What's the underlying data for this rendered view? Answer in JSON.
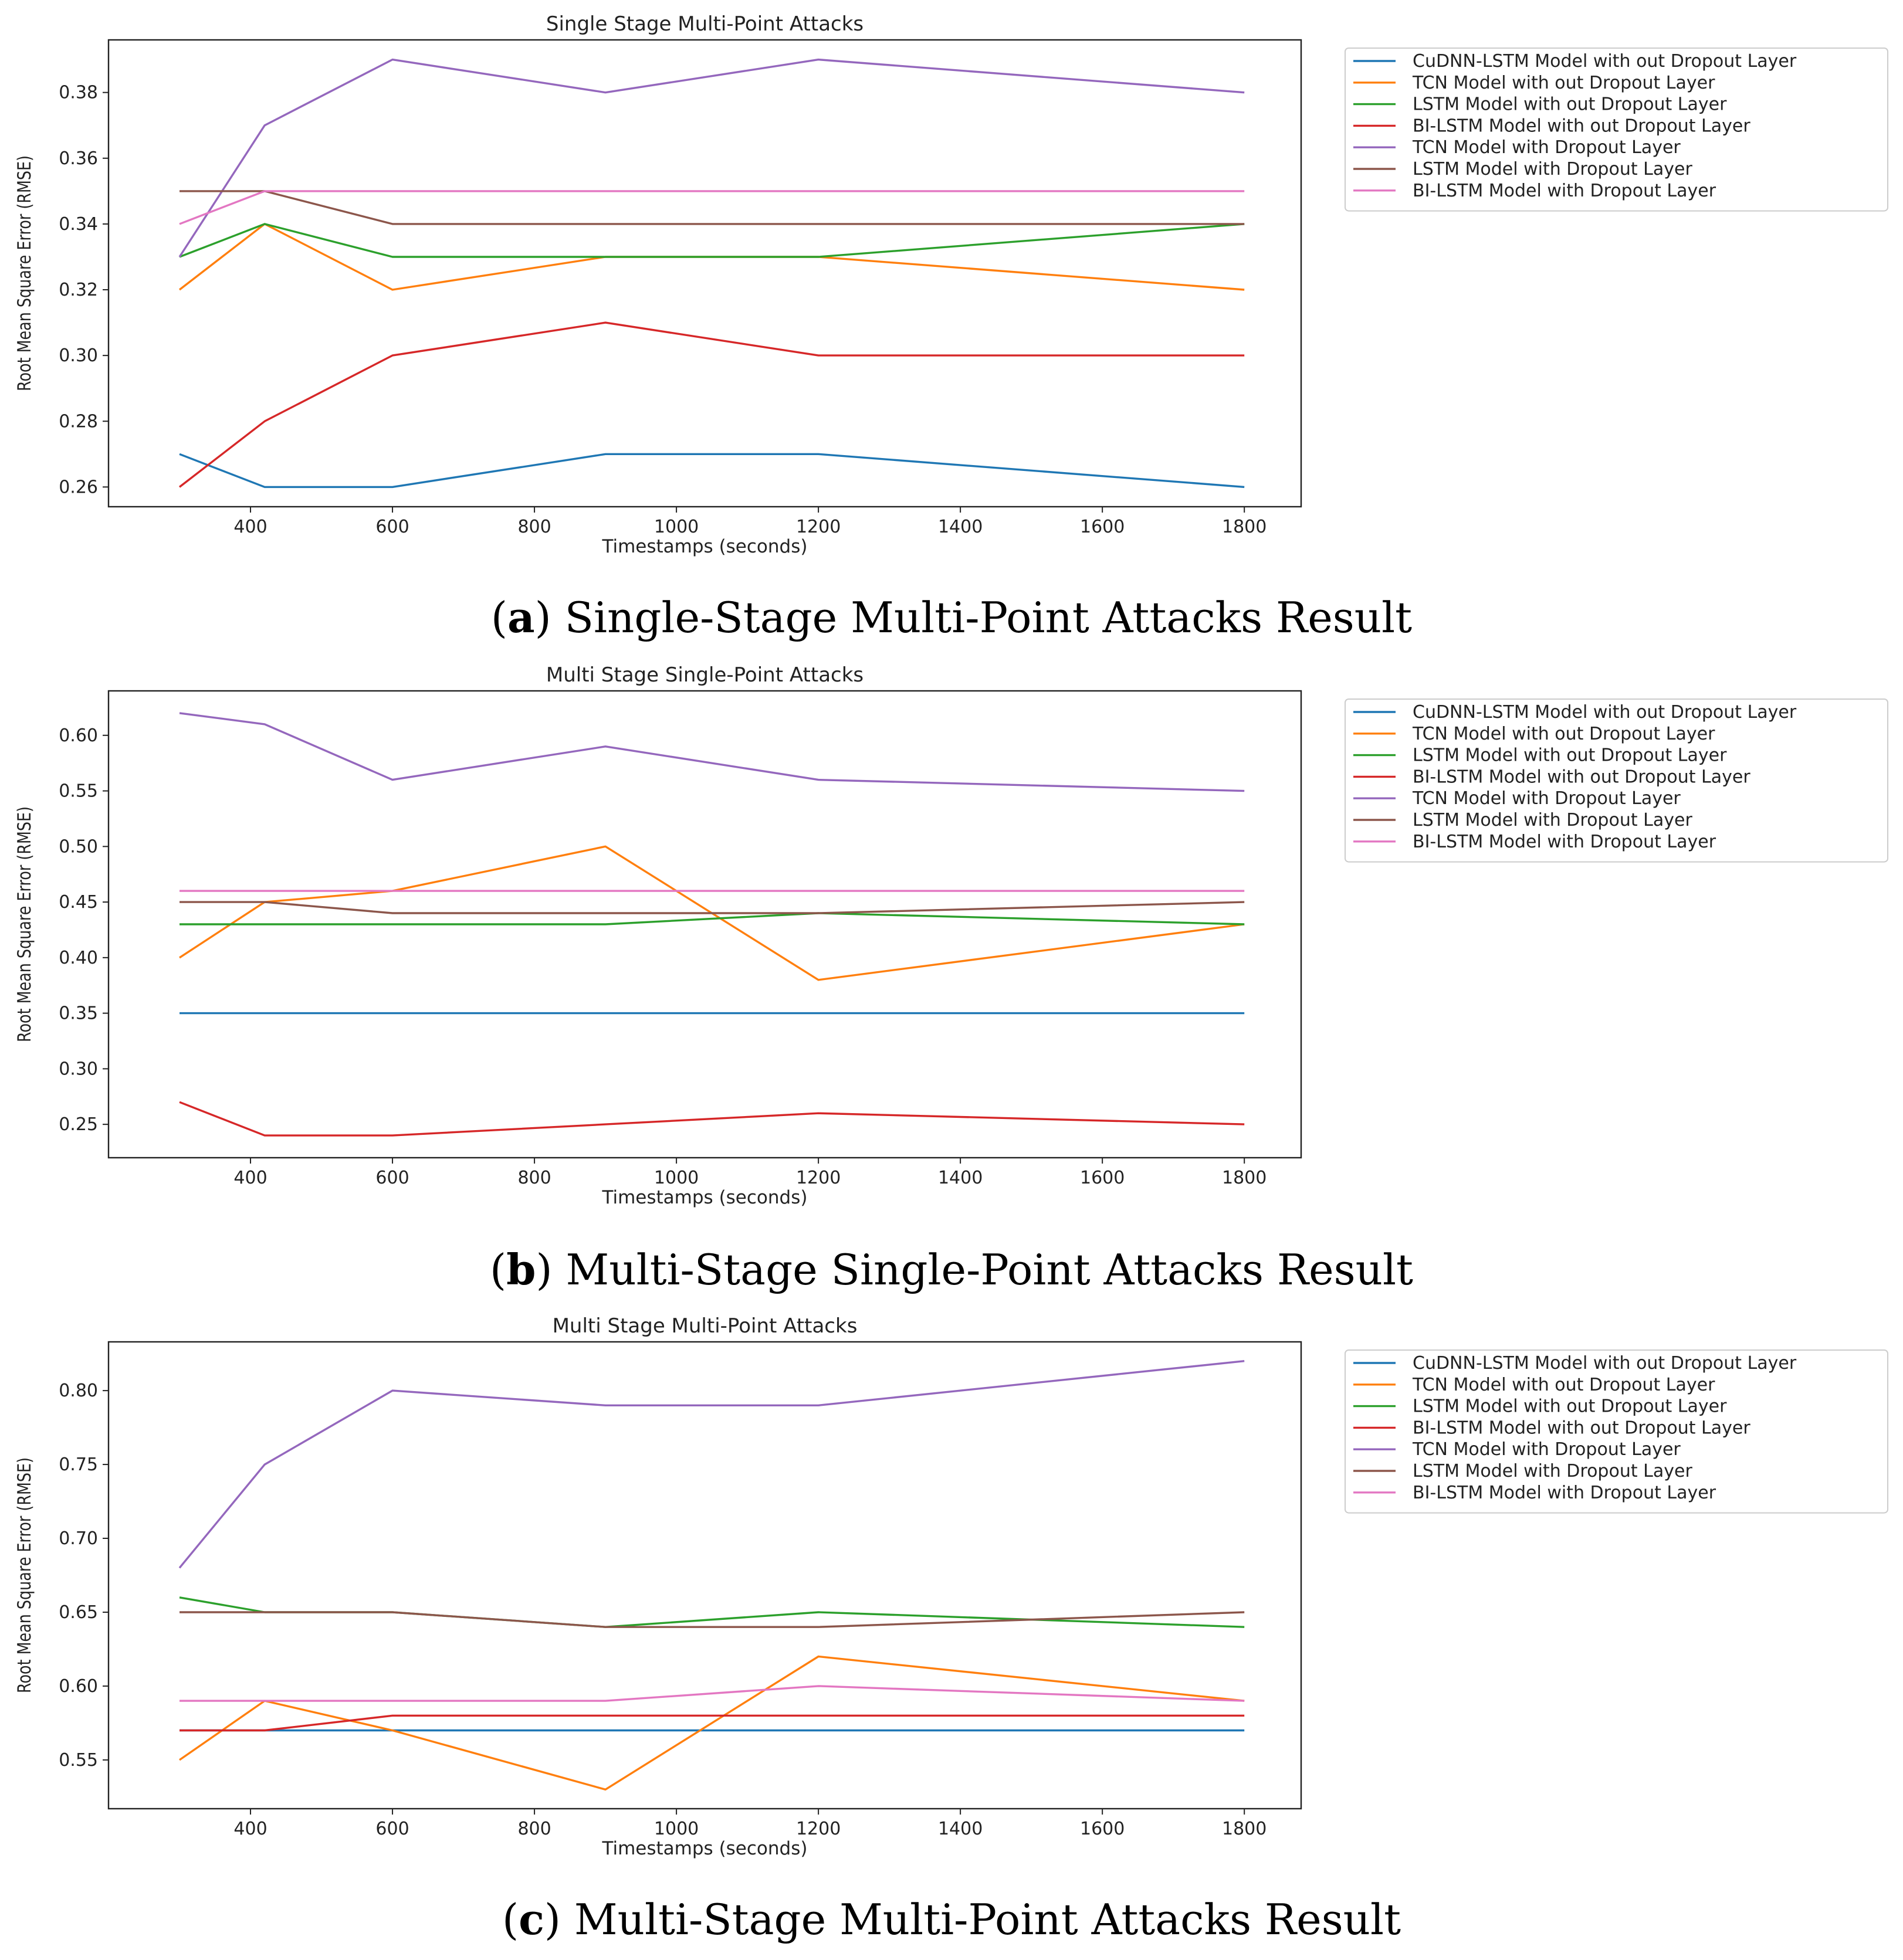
{
  "chart_data": [
    {
      "type": "line",
      "title": "Single Stage Multi-Point Attacks",
      "xlabel": "Timestamps (seconds)",
      "ylabel": "Root Mean Square Error (RMSE)",
      "x": [
        300,
        420,
        600,
        900,
        1200,
        1800
      ],
      "xlim": [
        200,
        1880
      ],
      "ylim": [
        0.254,
        0.396
      ],
      "xticks": [
        "400",
        "600",
        "800",
        "1000",
        "1200",
        "1400",
        "1600",
        "1800"
      ],
      "yticks": [
        "0.26",
        "0.28",
        "0.30",
        "0.32",
        "0.34",
        "0.36",
        "0.38"
      ],
      "legend_position": "outside right",
      "caption_letter": "a",
      "caption_text": "Single-Stage Multi-Point Attacks Result",
      "series": [
        {
          "name": "CuDNN-LSTM Model with out Dropout Layer",
          "color": "#1f77b4",
          "values": [
            0.27,
            0.26,
            0.26,
            0.27,
            0.27,
            0.26
          ]
        },
        {
          "name": "TCN Model with out Dropout Layer",
          "color": "#ff7f0e",
          "values": [
            0.32,
            0.34,
            0.32,
            0.33,
            0.33,
            0.32
          ]
        },
        {
          "name": "LSTM Model with out Dropout Layer",
          "color": "#2ca02c",
          "values": [
            0.33,
            0.34,
            0.33,
            0.33,
            0.33,
            0.34
          ]
        },
        {
          "name": "BI-LSTM Model with out Dropout Layer",
          "color": "#d62728",
          "values": [
            0.26,
            0.28,
            0.3,
            0.31,
            0.3,
            0.3
          ]
        },
        {
          "name": "TCN Model with Dropout Layer",
          "color": "#9467bd",
          "values": [
            0.33,
            0.37,
            0.39,
            0.38,
            0.39,
            0.38
          ]
        },
        {
          "name": "LSTM Model with Dropout Layer",
          "color": "#8c564b",
          "values": [
            0.35,
            0.35,
            0.34,
            0.34,
            0.34,
            0.34
          ]
        },
        {
          "name": "BI-LSTM Model with Dropout Layer",
          "color": "#e377c2",
          "values": [
            0.34,
            0.35,
            0.35,
            0.35,
            0.35,
            0.35
          ]
        }
      ]
    },
    {
      "type": "line",
      "title": "Multi Stage Single-Point Attacks",
      "xlabel": "Timestamps (seconds)",
      "ylabel": "Root Mean Square Error (RMSE)",
      "x": [
        300,
        420,
        600,
        900,
        1200,
        1800
      ],
      "xlim": [
        200,
        1880
      ],
      "ylim": [
        0.22,
        0.64
      ],
      "xticks": [
        "400",
        "600",
        "800",
        "1000",
        "1200",
        "1400",
        "1600",
        "1800"
      ],
      "yticks": [
        "0.25",
        "0.30",
        "0.35",
        "0.40",
        "0.45",
        "0.50",
        "0.55",
        "0.60"
      ],
      "legend_position": "outside right",
      "caption_letter": "b",
      "caption_text": "Multi-Stage Single-Point Attacks Result",
      "series": [
        {
          "name": "CuDNN-LSTM Model with out Dropout Layer",
          "color": "#1f77b4",
          "values": [
            0.35,
            0.35,
            0.35,
            0.35,
            0.35,
            0.35
          ]
        },
        {
          "name": "TCN Model with out Dropout Layer",
          "color": "#ff7f0e",
          "values": [
            0.4,
            0.45,
            0.46,
            0.5,
            0.38,
            0.43
          ]
        },
        {
          "name": "LSTM Model with out Dropout Layer",
          "color": "#2ca02c",
          "values": [
            0.43,
            0.43,
            0.43,
            0.43,
            0.44,
            0.43
          ]
        },
        {
          "name": "BI-LSTM Model with out Dropout Layer",
          "color": "#d62728",
          "values": [
            0.27,
            0.24,
            0.24,
            0.25,
            0.26,
            0.25
          ]
        },
        {
          "name": "TCN Model with Dropout Layer",
          "color": "#9467bd",
          "values": [
            0.62,
            0.61,
            0.56,
            0.59,
            0.56,
            0.55
          ]
        },
        {
          "name": "LSTM Model with Dropout Layer",
          "color": "#8c564b",
          "values": [
            0.45,
            0.45,
            0.44,
            0.44,
            0.44,
            0.45
          ]
        },
        {
          "name": "BI-LSTM Model with Dropout Layer",
          "color": "#e377c2",
          "values": [
            0.46,
            0.46,
            0.46,
            0.46,
            0.46,
            0.46
          ]
        }
      ]
    },
    {
      "type": "line",
      "title": "Multi Stage Multi-Point Attacks",
      "xlabel": "Timestamps (seconds)",
      "ylabel": "Root Mean Square Error (RMSE)",
      "x": [
        300,
        420,
        600,
        900,
        1200,
        1800
      ],
      "xlim": [
        200,
        1880
      ],
      "ylim": [
        0.517,
        0.833
      ],
      "xticks": [
        "400",
        "600",
        "800",
        "1000",
        "1200",
        "1400",
        "1600",
        "1800"
      ],
      "yticks": [
        "0.55",
        "0.60",
        "0.65",
        "0.70",
        "0.75",
        "0.80"
      ],
      "legend_position": "outside right",
      "caption_letter": "c",
      "caption_text": "Multi-Stage Multi-Point Attacks Result",
      "series": [
        {
          "name": "CuDNN-LSTM Model with out Dropout Layer",
          "color": "#1f77b4",
          "values": [
            0.57,
            0.57,
            0.57,
            0.57,
            0.57,
            0.57
          ]
        },
        {
          "name": "TCN Model with out Dropout Layer",
          "color": "#ff7f0e",
          "values": [
            0.55,
            0.59,
            0.57,
            0.53,
            0.62,
            0.59
          ]
        },
        {
          "name": "LSTM Model with out Dropout Layer",
          "color": "#2ca02c",
          "values": [
            0.66,
            0.65,
            0.65,
            0.64,
            0.65,
            0.64
          ]
        },
        {
          "name": "BI-LSTM Model with out Dropout Layer",
          "color": "#d62728",
          "values": [
            0.57,
            0.57,
            0.58,
            0.58,
            0.58,
            0.58
          ]
        },
        {
          "name": "TCN Model with Dropout Layer",
          "color": "#9467bd",
          "values": [
            0.68,
            0.75,
            0.8,
            0.79,
            0.79,
            0.82
          ]
        },
        {
          "name": "LSTM Model with Dropout Layer",
          "color": "#8c564b",
          "values": [
            0.65,
            0.65,
            0.65,
            0.64,
            0.64,
            0.65
          ]
        },
        {
          "name": "BI-LSTM Model with Dropout Layer",
          "color": "#e377c2",
          "values": [
            0.59,
            0.59,
            0.59,
            0.59,
            0.6,
            0.59
          ]
        }
      ]
    }
  ]
}
